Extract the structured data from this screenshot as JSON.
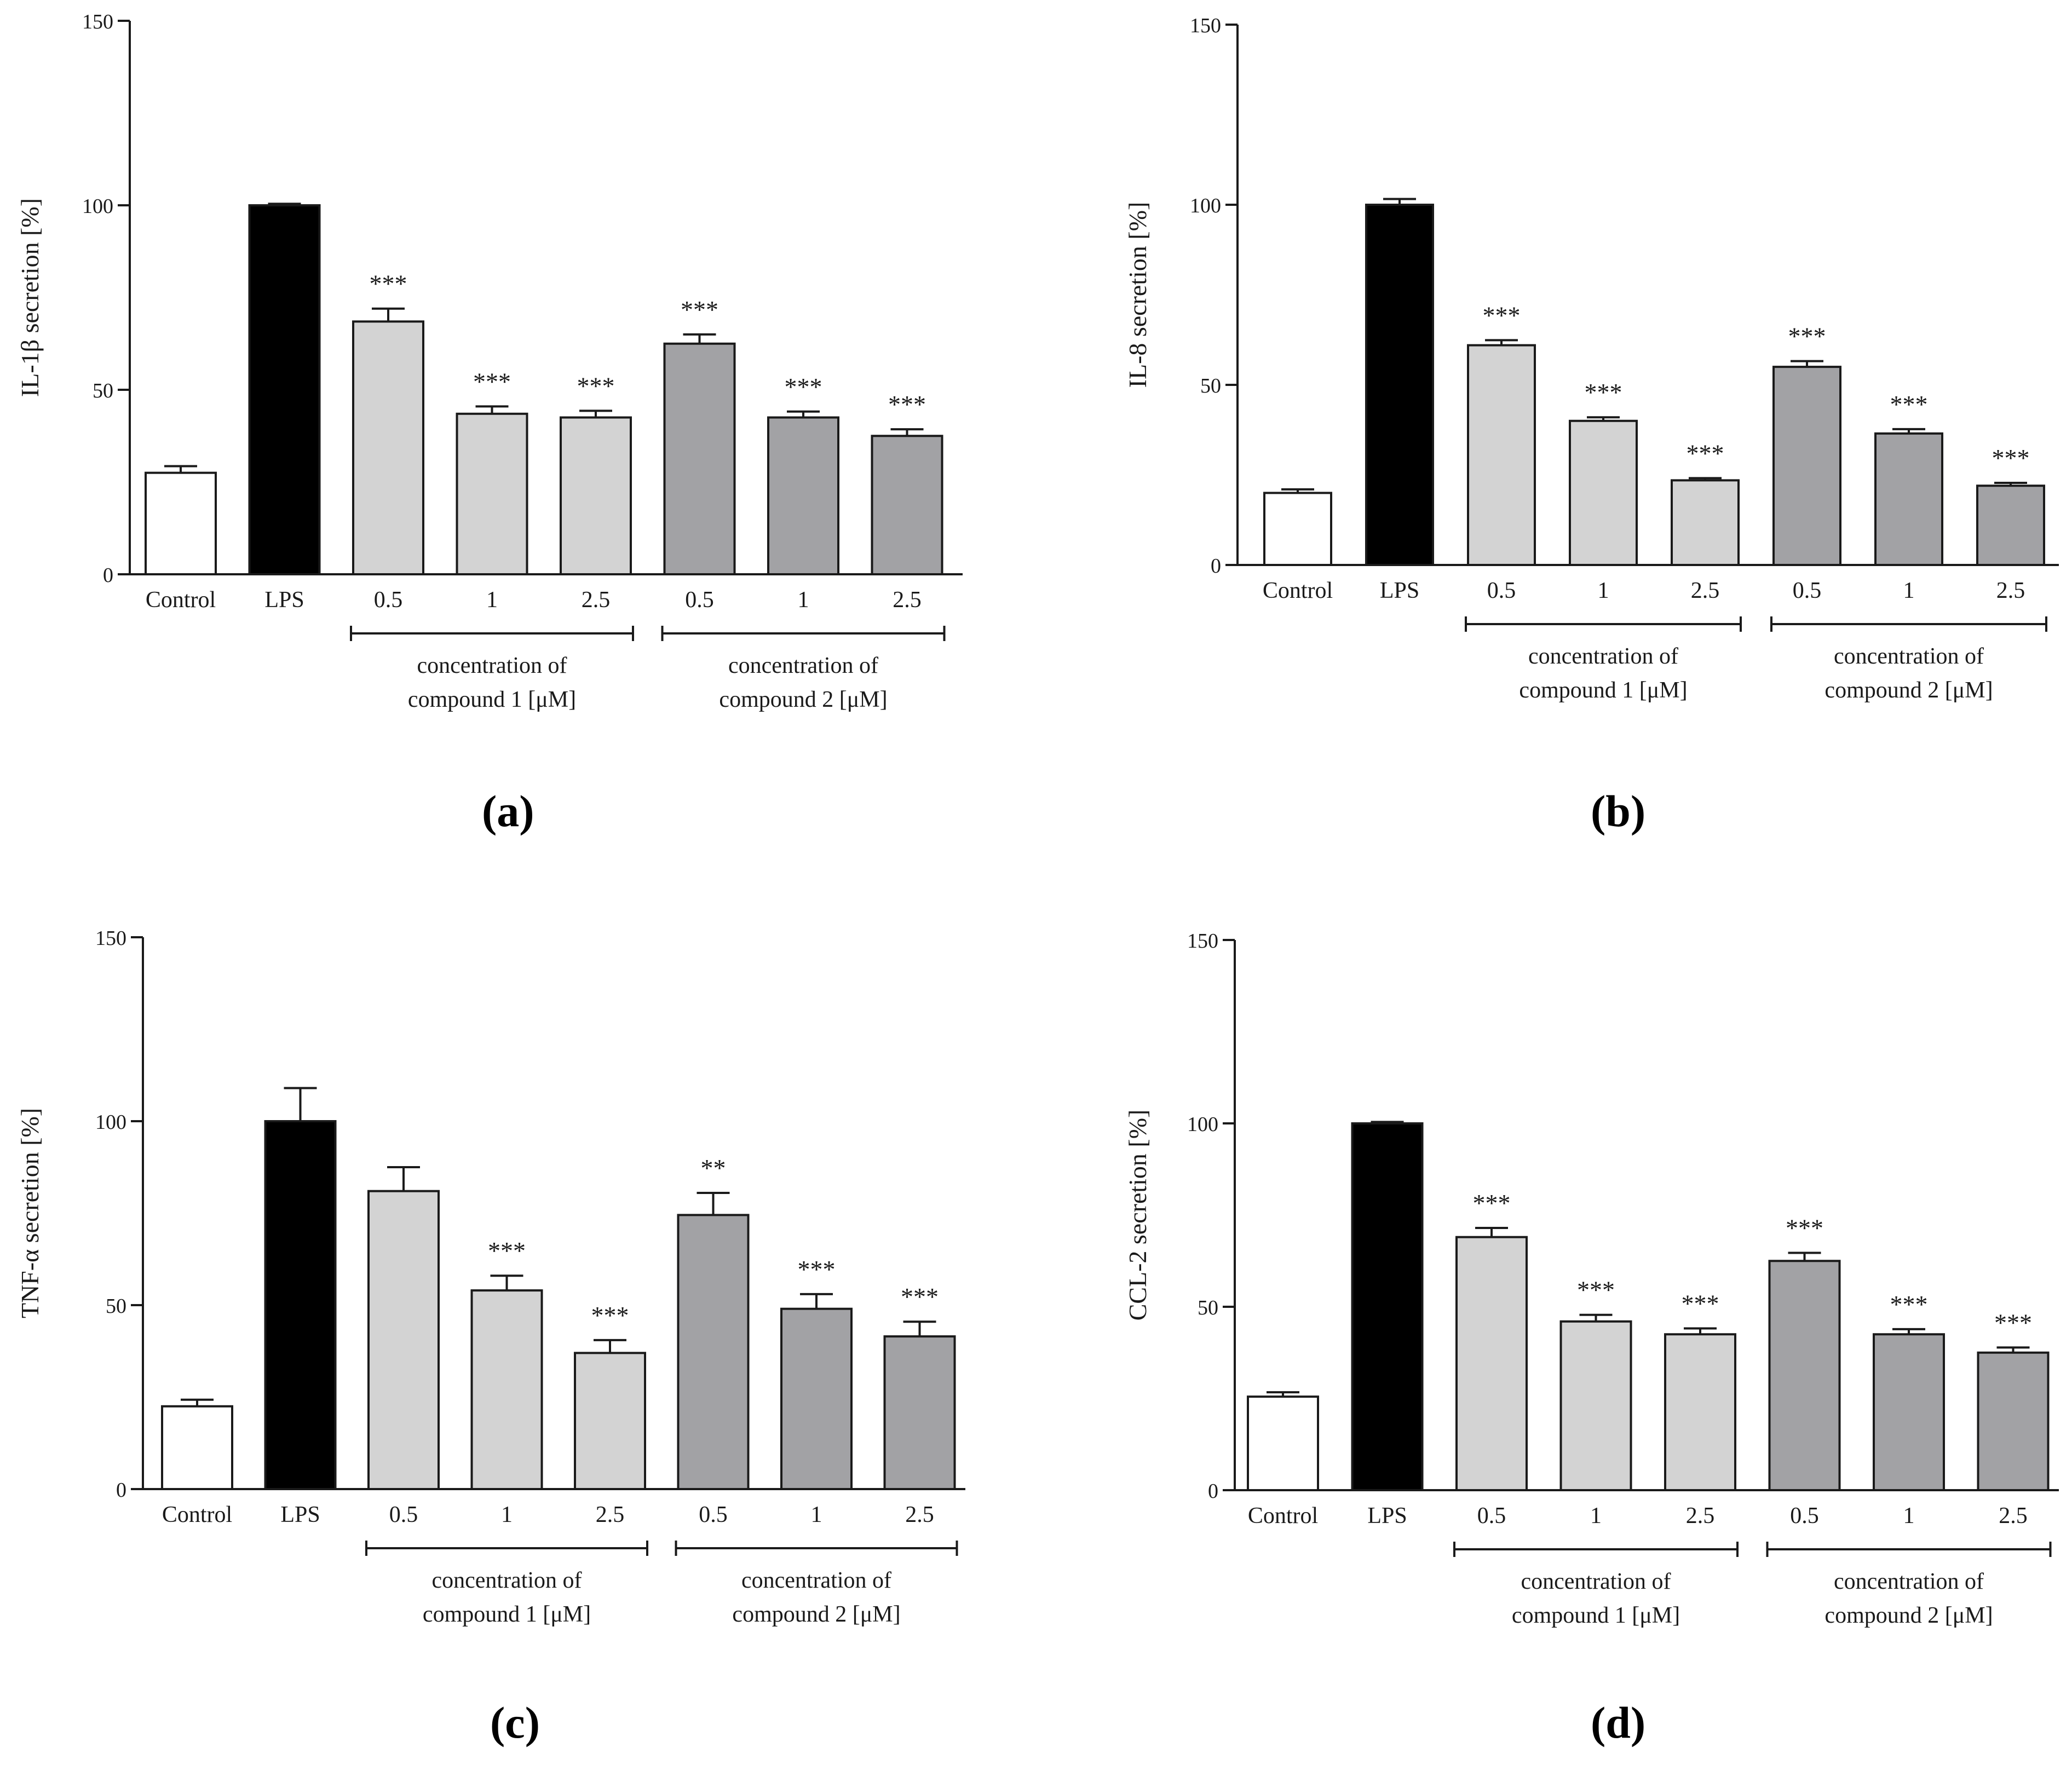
{
  "figure": {
    "panel_labels": [
      "(a)",
      "(b)",
      "(c)",
      "(d)"
    ]
  },
  "colors": {
    "control": "#ffffff",
    "lps": "#000000",
    "compound1": "#d3d3d3",
    "compound2": "#a2a2a5",
    "stroke": "#1a1a1a"
  },
  "chart_data": [
    {
      "type": "bar",
      "panel": "a",
      "ylabel": "IL-1β secretion [%]",
      "ylim": [
        0,
        150
      ],
      "yticks": [
        0,
        50,
        100,
        150
      ],
      "categories": [
        "Control",
        "LPS",
        "0.5",
        "1",
        "2.5",
        "0.5",
        "1",
        "2.5"
      ],
      "groups": [
        "control",
        "lps",
        "compound1",
        "compound1",
        "compound1",
        "compound2",
        "compound2",
        "compound2"
      ],
      "values": [
        27.5,
        100,
        68.5,
        43.5,
        42.5,
        62.5,
        42.5,
        37.5
      ],
      "errors": [
        1.8,
        0.4,
        3.5,
        2.0,
        1.8,
        2.5,
        1.6,
        1.8
      ],
      "significance": [
        "",
        "",
        "***",
        "***",
        "***",
        "***",
        "***",
        "***"
      ],
      "group_labels": [
        {
          "line1": "concentration of",
          "line2": "compound 1 [μM]",
          "from": 2,
          "to": 4
        },
        {
          "line1": "concentration of",
          "line2": "compound 2 [μM]",
          "from": 5,
          "to": 7
        }
      ]
    },
    {
      "type": "bar",
      "panel": "b",
      "ylabel": "IL-8 secretion [%]",
      "ylim": [
        0,
        150
      ],
      "yticks": [
        0,
        50,
        100,
        150
      ],
      "categories": [
        "Control",
        "LPS",
        "0.5",
        "1",
        "2.5",
        "0.5",
        "1",
        "2.5"
      ],
      "groups": [
        "control",
        "lps",
        "compound1",
        "compound1",
        "compound1",
        "compound2",
        "compound2",
        "compound2"
      ],
      "values": [
        20.0,
        100,
        61.0,
        40.0,
        23.5,
        55.0,
        36.5,
        22.0
      ],
      "errors": [
        1.0,
        1.6,
        1.4,
        1.0,
        0.6,
        1.6,
        1.2,
        0.8
      ],
      "significance": [
        "",
        "",
        "***",
        "***",
        "***",
        "***",
        "***",
        "***"
      ],
      "group_labels": [
        {
          "line1": "concentration of",
          "line2": "compound 1 [μM]",
          "from": 2,
          "to": 4
        },
        {
          "line1": "concentration of",
          "line2": "compound 2 [μM]",
          "from": 5,
          "to": 7
        }
      ]
    },
    {
      "type": "bar",
      "panel": "c",
      "ylabel": "TNF-α secretion [%]",
      "ylim": [
        0,
        150
      ],
      "yticks": [
        0,
        50,
        100,
        150
      ],
      "categories": [
        "Control",
        "LPS",
        "0.5",
        "1",
        "2.5",
        "0.5",
        "1",
        "2.5"
      ],
      "groups": [
        "control",
        "lps",
        "compound1",
        "compound1",
        "compound1",
        "compound2",
        "compound2",
        "compound2"
      ],
      "values": [
        22.5,
        100,
        81.0,
        54.0,
        37.0,
        74.5,
        49.0,
        41.5
      ],
      "errors": [
        1.8,
        9.0,
        6.5,
        4.0,
        3.5,
        6.0,
        4.0,
        4.0
      ],
      "significance": [
        "",
        "",
        "",
        "***",
        "***",
        "**",
        "***",
        "***"
      ],
      "group_labels": [
        {
          "line1": "concentration of",
          "line2": "compound 1 [μM]",
          "from": 2,
          "to": 4
        },
        {
          "line1": "concentration of",
          "line2": "compound 2 [μM]",
          "from": 5,
          "to": 7
        }
      ]
    },
    {
      "type": "bar",
      "panel": "d",
      "ylabel": "CCL-2 secretion [%]",
      "ylim": [
        0,
        150
      ],
      "yticks": [
        0,
        50,
        100,
        150
      ],
      "categories": [
        "Control",
        "LPS",
        "0.5",
        "1",
        "2.5",
        "0.5",
        "1",
        "2.5"
      ],
      "groups": [
        "control",
        "lps",
        "compound1",
        "compound1",
        "compound1",
        "compound2",
        "compound2",
        "compound2"
      ],
      "values": [
        25.5,
        100,
        69.0,
        46.0,
        42.5,
        62.5,
        42.5,
        37.5
      ],
      "errors": [
        1.2,
        0.4,
        2.5,
        1.8,
        1.6,
        2.2,
        1.4,
        1.4
      ],
      "significance": [
        "",
        "",
        "***",
        "***",
        "***",
        "***",
        "***",
        "***"
      ],
      "group_labels": [
        {
          "line1": "concentration of",
          "line2": "compound 1 [μM]",
          "from": 2,
          "to": 4
        },
        {
          "line1": "concentration of",
          "line2": "compound 2 [μM]",
          "from": 5,
          "to": 7
        }
      ]
    }
  ]
}
